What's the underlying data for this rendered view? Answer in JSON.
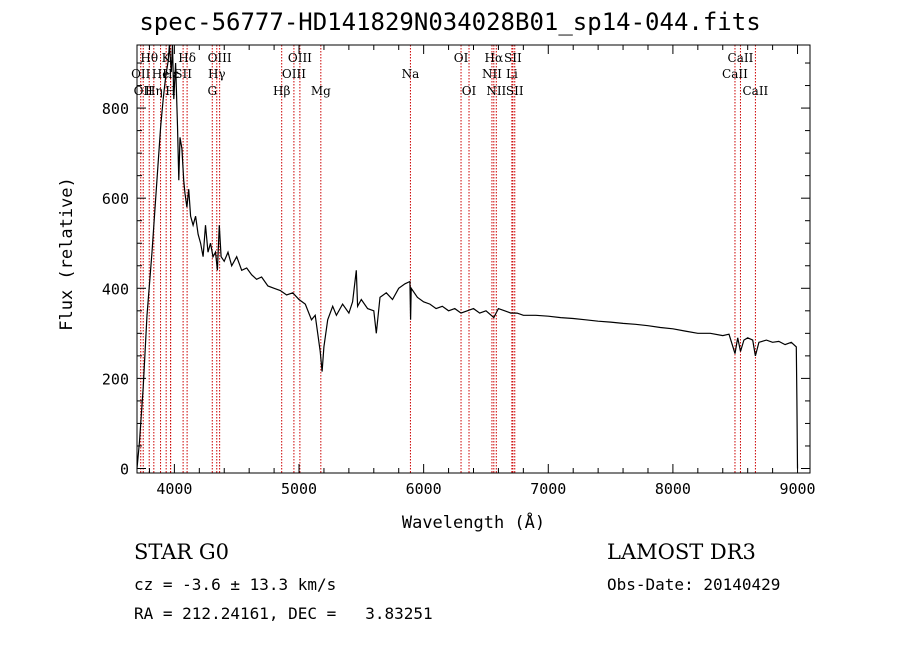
{
  "header": {
    "title": "spec-56777-HD141829N034028B01_sp14-044.fits"
  },
  "info": {
    "class_label": "STAR    G0",
    "survey": "LAMOST DR3",
    "cz": "cz = -3.6 ± 13.3 km/s",
    "obs_date": "Obs-Date: 20140429",
    "radec": "RA = 212.24161, DEC =   3.83251"
  },
  "chart_data": {
    "type": "line",
    "title": "spec-56777-HD141829N034028B01_sp14-044.fits",
    "xlabel": "Wavelength (Å)",
    "ylabel": "Flux (relative)",
    "xlim": [
      3700,
      9100
    ],
    "ylim": [
      -10,
      940
    ],
    "x_ticks": [
      4000,
      5000,
      6000,
      7000,
      8000,
      9000
    ],
    "y_ticks": [
      0,
      200,
      400,
      600,
      800
    ],
    "grid": false,
    "line_color": "#000000",
    "marker_color": "#cc0000",
    "series": [
      {
        "values": [
          [
            3700,
            0
          ],
          [
            3720,
            60
          ],
          [
            3750,
            180
          ],
          [
            3780,
            340
          ],
          [
            3820,
            480
          ],
          [
            3850,
            600
          ],
          [
            3870,
            680
          ],
          [
            3890,
            760
          ],
          [
            3910,
            820
          ],
          [
            3930,
            870
          ],
          [
            3950,
            905
          ],
          [
            3960,
            940
          ],
          [
            3975,
            880
          ],
          [
            3985,
            940
          ],
          [
            3995,
            820
          ],
          [
            4010,
            900
          ],
          [
            4025,
            760
          ],
          [
            4035,
            640
          ],
          [
            4045,
            735
          ],
          [
            4060,
            710
          ],
          [
            4075,
            640
          ],
          [
            4085,
            610
          ],
          [
            4100,
            580
          ],
          [
            4115,
            620
          ],
          [
            4130,
            560
          ],
          [
            4150,
            540
          ],
          [
            4170,
            560
          ],
          [
            4190,
            520
          ],
          [
            4210,
            500
          ],
          [
            4230,
            470
          ],
          [
            4250,
            540
          ],
          [
            4270,
            480
          ],
          [
            4290,
            500
          ],
          [
            4310,
            470
          ],
          [
            4330,
            480
          ],
          [
            4345,
            440
          ],
          [
            4360,
            540
          ],
          [
            4375,
            470
          ],
          [
            4400,
            460
          ],
          [
            4430,
            480
          ],
          [
            4460,
            450
          ],
          [
            4500,
            470
          ],
          [
            4540,
            440
          ],
          [
            4580,
            445
          ],
          [
            4620,
            430
          ],
          [
            4660,
            420
          ],
          [
            4700,
            425
          ],
          [
            4750,
            405
          ],
          [
            4800,
            400
          ],
          [
            4850,
            395
          ],
          [
            4900,
            385
          ],
          [
            4950,
            390
          ],
          [
            5000,
            375
          ],
          [
            5050,
            365
          ],
          [
            5100,
            330
          ],
          [
            5130,
            340
          ],
          [
            5150,
            300
          ],
          [
            5170,
            260
          ],
          [
            5185,
            215
          ],
          [
            5200,
            270
          ],
          [
            5230,
            330
          ],
          [
            5270,
            360
          ],
          [
            5300,
            340
          ],
          [
            5350,
            365
          ],
          [
            5400,
            345
          ],
          [
            5430,
            370
          ],
          [
            5460,
            440
          ],
          [
            5470,
            360
          ],
          [
            5500,
            375
          ],
          [
            5550,
            355
          ],
          [
            5600,
            350
          ],
          [
            5620,
            300
          ],
          [
            5650,
            380
          ],
          [
            5700,
            390
          ],
          [
            5750,
            375
          ],
          [
            5800,
            400
          ],
          [
            5850,
            410
          ],
          [
            5890,
            415
          ],
          [
            5895,
            330
          ],
          [
            5900,
            400
          ],
          [
            5950,
            380
          ],
          [
            6000,
            370
          ],
          [
            6050,
            365
          ],
          [
            6100,
            355
          ],
          [
            6150,
            360
          ],
          [
            6200,
            350
          ],
          [
            6250,
            355
          ],
          [
            6300,
            345
          ],
          [
            6350,
            350
          ],
          [
            6400,
            355
          ],
          [
            6450,
            345
          ],
          [
            6500,
            350
          ],
          [
            6563,
            335
          ],
          [
            6600,
            355
          ],
          [
            6650,
            350
          ],
          [
            6700,
            345
          ],
          [
            6750,
            345
          ],
          [
            6800,
            340
          ],
          [
            6900,
            340
          ],
          [
            7000,
            338
          ],
          [
            7100,
            335
          ],
          [
            7200,
            333
          ],
          [
            7300,
            330
          ],
          [
            7400,
            327
          ],
          [
            7500,
            325
          ],
          [
            7600,
            322
          ],
          [
            7700,
            320
          ],
          [
            7800,
            317
          ],
          [
            7900,
            313
          ],
          [
            8000,
            310
          ],
          [
            8100,
            305
          ],
          [
            8200,
            300
          ],
          [
            8300,
            300
          ],
          [
            8400,
            295
          ],
          [
            8450,
            298
          ],
          [
            8498,
            255
          ],
          [
            8520,
            290
          ],
          [
            8542,
            260
          ],
          [
            8570,
            285
          ],
          [
            8600,
            290
          ],
          [
            8640,
            285
          ],
          [
            8662,
            250
          ],
          [
            8690,
            280
          ],
          [
            8750,
            285
          ],
          [
            8800,
            280
          ],
          [
            8850,
            282
          ],
          [
            8900,
            275
          ],
          [
            8950,
            280
          ],
          [
            8990,
            270
          ],
          [
            8995,
            150
          ],
          [
            9000,
            0
          ]
        ]
      }
    ],
    "line_markers": [
      {
        "wavelength": 3730,
        "label": "OII",
        "row": 2
      },
      {
        "wavelength": 3750,
        "label": "OII",
        "row": 3
      },
      {
        "wavelength": 3798,
        "label": "Hθ",
        "row": 1
      },
      {
        "wavelength": 3835,
        "label": "Hη",
        "row": 3
      },
      {
        "wavelength": 3889,
        "label": "He",
        "row": 2
      },
      {
        "wavelength": 3934,
        "label": "K",
        "row": 1
      },
      {
        "wavelength": 3969,
        "label": "H",
        "row": 3
      },
      {
        "wavelength": 3970,
        "label": "Hε",
        "row": 2
      },
      {
        "wavelength": 4070,
        "label": "SII",
        "row": 2
      },
      {
        "wavelength": 4102,
        "label": "Hδ",
        "row": 1
      },
      {
        "wavelength": 4304,
        "label": "G",
        "row": 3
      },
      {
        "wavelength": 4340,
        "label": "Hγ",
        "row": 2
      },
      {
        "wavelength": 4363,
        "label": "OIII",
        "row": 1
      },
      {
        "wavelength": 4861,
        "label": "Hβ",
        "row": 3
      },
      {
        "wavelength": 4959,
        "label": "OIII",
        "row": 2
      },
      {
        "wavelength": 5007,
        "label": "OIII",
        "row": 1
      },
      {
        "wavelength": 5175,
        "label": "Mg",
        "row": 3
      },
      {
        "wavelength": 5894,
        "label": "Na",
        "row": 2
      },
      {
        "wavelength": 6300,
        "label": "OI",
        "row": 1
      },
      {
        "wavelength": 6364,
        "label": "OI",
        "row": 3
      },
      {
        "wavelength": 6548,
        "label": "NII",
        "row": 2
      },
      {
        "wavelength": 6563,
        "label": "Hα",
        "row": 1
      },
      {
        "wavelength": 6583,
        "label": "NII",
        "row": 3
      },
      {
        "wavelength": 6708,
        "label": "Li",
        "row": 2
      },
      {
        "wavelength": 6716,
        "label": "SII",
        "row": 1
      },
      {
        "wavelength": 6731,
        "label": "SII",
        "row": 3
      },
      {
        "wavelength": 8498,
        "label": "CaII",
        "row": 2
      },
      {
        "wavelength": 8542,
        "label": "CaII",
        "row": 1
      },
      {
        "wavelength": 8662,
        "label": "CaII",
        "row": 3
      }
    ]
  }
}
